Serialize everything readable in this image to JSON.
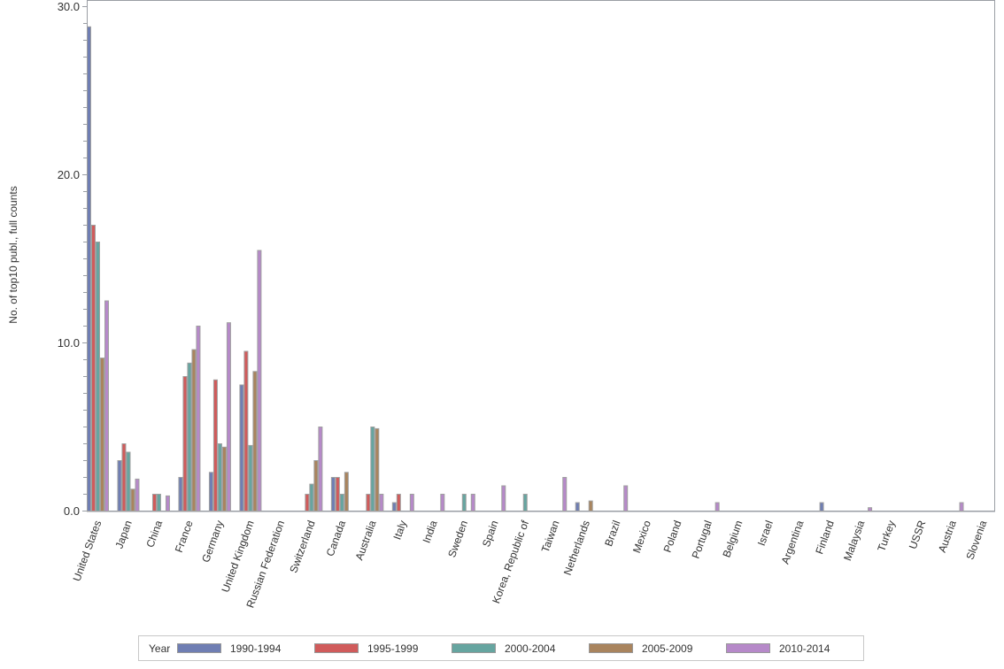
{
  "chart_data": {
    "type": "bar",
    "title": "",
    "xlabel": "",
    "ylabel": "No. of top10 publ., full counts",
    "ylim": [
      0,
      30
    ],
    "yticks": [
      "0.0",
      "10.0",
      "20.0",
      "30.0"
    ],
    "grid": false,
    "legend_position": "bottom",
    "legend_title": "Year",
    "categories": [
      "United States",
      "Japan",
      "China",
      "France",
      "Germany",
      "United Kingdom",
      "Russian Federation",
      "Switzerland",
      "Canada",
      "Australia",
      "Italy",
      "India",
      "Sweden",
      "Spain",
      "Korea, Republic of",
      "Taiwan",
      "Netherlands",
      "Brazil",
      "Mexico",
      "Poland",
      "Portugal",
      "Belgium",
      "Israel",
      "Argentina",
      "Finland",
      "Malaysia",
      "Turkey",
      "USSR",
      "Austria",
      "Slovenia"
    ],
    "series": [
      {
        "name": "1990-1994",
        "color": "#6f7eb3",
        "values": [
          28.8,
          3.0,
          0,
          2.0,
          2.3,
          7.5,
          0,
          0,
          2.0,
          0,
          0.5,
          0,
          0,
          0,
          0,
          0,
          0.5,
          0,
          0,
          0,
          0,
          0,
          0,
          0,
          0.5,
          0,
          0,
          0,
          0,
          0
        ]
      },
      {
        "name": "1995-1999",
        "color": "#d05b5b",
        "values": [
          17.0,
          4.0,
          1.0,
          8.0,
          7.8,
          9.5,
          0,
          1.0,
          2.0,
          1.0,
          1.0,
          0,
          0,
          0,
          0,
          0,
          0,
          0,
          0,
          0,
          0,
          0,
          0,
          0,
          0,
          0,
          0,
          0,
          0,
          0
        ]
      },
      {
        "name": "2000-2004",
        "color": "#66a5a0",
        "values": [
          16.0,
          3.5,
          1.0,
          8.8,
          4.0,
          3.9,
          0,
          1.6,
          1.0,
          5.0,
          0,
          0,
          1.0,
          0,
          1.0,
          0,
          0,
          0,
          0,
          0,
          0,
          0,
          0,
          0,
          0,
          0,
          0,
          0,
          0,
          0
        ]
      },
      {
        "name": "2005-2009",
        "color": "#a9845e",
        "values": [
          9.1,
          1.3,
          0,
          9.6,
          3.8,
          8.3,
          0,
          3.0,
          2.3,
          4.9,
          0,
          0,
          0,
          0,
          0,
          0,
          0.6,
          0,
          0,
          0,
          0,
          0,
          0,
          0,
          0,
          0,
          0,
          0,
          0,
          0
        ]
      },
      {
        "name": "2010-2014",
        "color": "#b689c9",
        "values": [
          12.5,
          1.9,
          0.9,
          11.0,
          11.2,
          15.5,
          0,
          5.0,
          0,
          1.0,
          1.0,
          1.0,
          1.0,
          1.5,
          0,
          2.0,
          0,
          1.5,
          0,
          0,
          0.5,
          0,
          0,
          0,
          0,
          0.2,
          0,
          0,
          0.5,
          0
        ]
      }
    ]
  },
  "legend": {
    "title": "Year",
    "items": [
      {
        "label": "1990-1994",
        "color": "#6f7eb3"
      },
      {
        "label": "1995-1999",
        "color": "#d05b5b"
      },
      {
        "label": "2000-2004",
        "color": "#66a5a0"
      },
      {
        "label": "2005-2009",
        "color": "#a9845e"
      },
      {
        "label": "2010-2014",
        "color": "#b689c9"
      }
    ]
  },
  "style": {
    "axis_color": "#9a9ea4",
    "bar_outline": "#a0a0a0",
    "text_color": "#333333"
  }
}
